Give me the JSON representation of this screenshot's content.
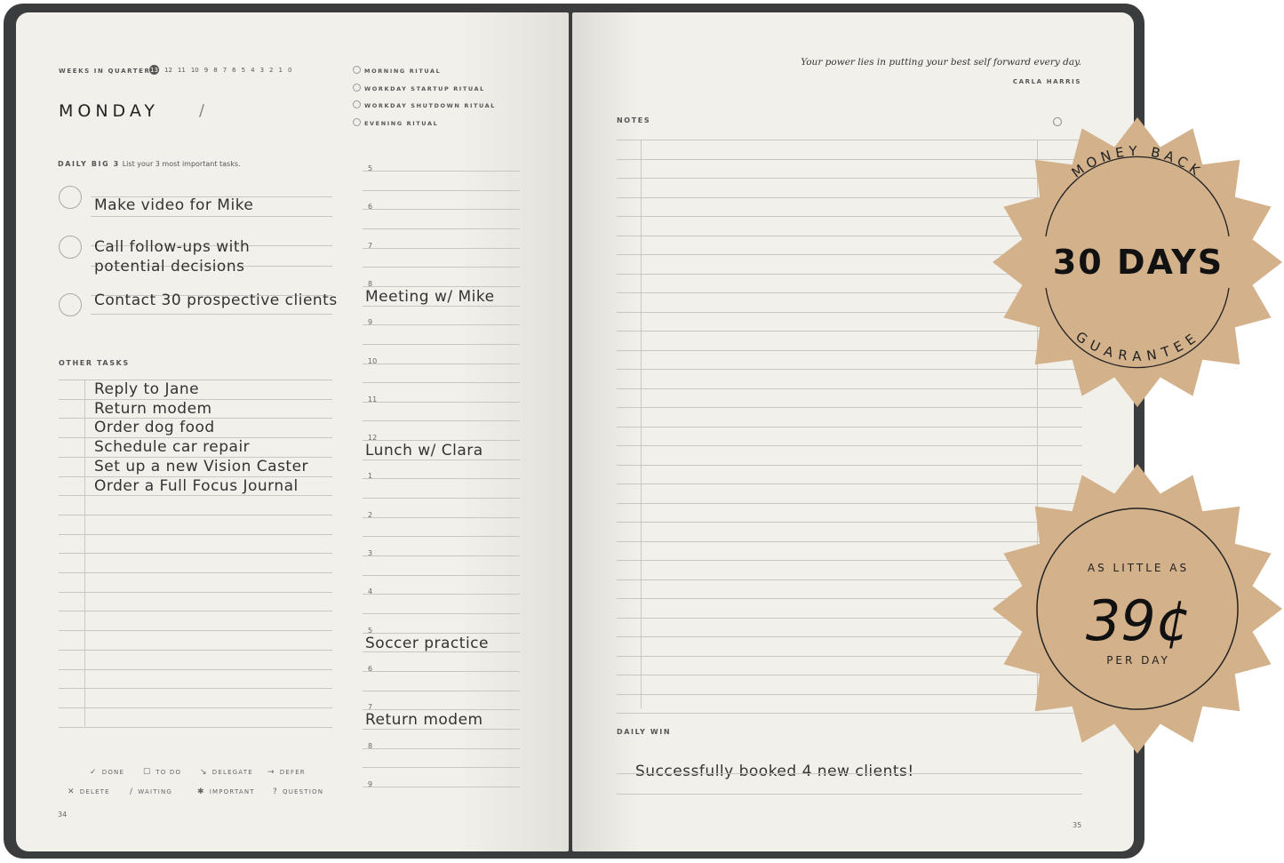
{
  "left_page": {
    "weeks_label": "WEEKS IN QUARTER",
    "weeks": [
      "13",
      "12",
      "11",
      "10",
      "9",
      "8",
      "7",
      "6",
      "5",
      "4",
      "3",
      "2",
      "1",
      "0"
    ],
    "day": "MONDAY",
    "date_separator": "/",
    "rituals": [
      "MORNING RITUAL",
      "WORKDAY STARTUP RITUAL",
      "WORKDAY SHUTDOWN RITUAL",
      "EVENING RITUAL"
    ],
    "big3_label": "DAILY BIG 3",
    "big3_hint": "List your 3 most important tasks.",
    "big3": [
      "Make video for Mike",
      "Call follow-ups with\npotential decisions",
      "Contact 30 prospective clients"
    ],
    "other_tasks_label": "OTHER TASKS",
    "other_tasks": [
      "Reply to Jane",
      "Return modem",
      "Order dog food",
      "Schedule car repair",
      "Set up a new Vision Caster",
      "Order a Full Focus Journal"
    ],
    "hours": [
      "5",
      "6",
      "7",
      "8",
      "9",
      "10",
      "11",
      "12",
      "1",
      "2",
      "3",
      "4",
      "5",
      "6",
      "7",
      "8",
      "9"
    ],
    "schedule": [
      {
        "hour_index": 3,
        "text": "Meeting w/ Mike"
      },
      {
        "hour_index": 7,
        "text": "Lunch w/ Clara"
      },
      {
        "hour_index": 12,
        "text": "Soccer practice"
      },
      {
        "hour_index": 14,
        "text": "Return modem"
      }
    ],
    "legend": [
      {
        "symbol": "✓",
        "label": "DONE"
      },
      {
        "symbol": "☐",
        "label": "TO DO"
      },
      {
        "symbol": "↘",
        "label": "DELEGATE"
      },
      {
        "symbol": "→",
        "label": "DEFER"
      },
      {
        "symbol": "✕",
        "label": "DELETE"
      },
      {
        "symbol": "/",
        "label": "WAITING"
      },
      {
        "symbol": "✱",
        "label": "IMPORTANT"
      },
      {
        "symbol": "?",
        "label": "QUESTION"
      }
    ],
    "page_number": "34"
  },
  "right_page": {
    "quote": "Your power lies in putting your best self forward every day.",
    "quote_author": "CARLA HARRIS",
    "notes_label": "NOTES",
    "daily_win_label": "DAILY WIN",
    "daily_win": "Successfully booked 4 new clients!",
    "page_number": "35"
  },
  "badges": {
    "guarantee": {
      "top": "MONEY BACK",
      "main": "30 DAYS",
      "bottom": "GUARANTEE"
    },
    "price": {
      "top": "AS LITTLE AS",
      "main": "39¢",
      "bottom": "PER DAY"
    },
    "color": "#d2b18b"
  }
}
